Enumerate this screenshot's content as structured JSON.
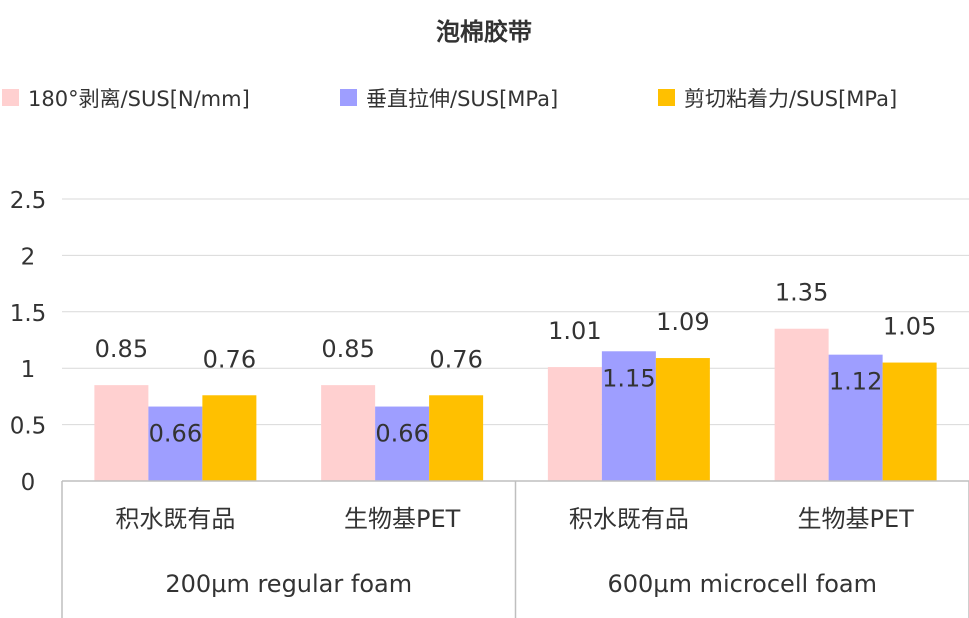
{
  "chart_data": {
    "type": "bar",
    "title": "泡棉胶带",
    "categories": [
      "积水既有品",
      "生物基PET",
      "积水既有品",
      "生物基PET"
    ],
    "category_groups": [
      {
        "label": "200µm regular foam",
        "span": 2
      },
      {
        "label": "600µm microcell foam",
        "span": 2
      }
    ],
    "series": [
      {
        "name": "180°剥离/SUS[N/mm]",
        "color": "#FFD0D0",
        "values": [
          0.85,
          0.85,
          1.01,
          1.35
        ],
        "labels": [
          "0.85",
          "0.85",
          "1.01",
          "1.35"
        ],
        "label_position": "outside-end"
      },
      {
        "name": "垂直拉伸/SUS[MPa]",
        "color": "#9E9EFF",
        "values": [
          0.66,
          0.66,
          1.15,
          1.12
        ],
        "labels": [
          "0.66",
          "0.66",
          "1.15",
          "1.12"
        ],
        "label_position": "inside-end"
      },
      {
        "name": "剪切粘着力/SUS[MPa]",
        "color": "#FFC000",
        "values": [
          0.76,
          0.76,
          1.09,
          1.05
        ],
        "labels": [
          "0.76",
          "0.76",
          "1.09",
          "1.05"
        ],
        "label_position": "outside-end"
      }
    ],
    "yticks": [
      "0",
      "0.5",
      "1",
      "1.5",
      "2",
      "2.5"
    ],
    "ylim": [
      0,
      2.5
    ],
    "grid": true,
    "legend": "top",
    "xlabel": "",
    "ylabel": ""
  }
}
